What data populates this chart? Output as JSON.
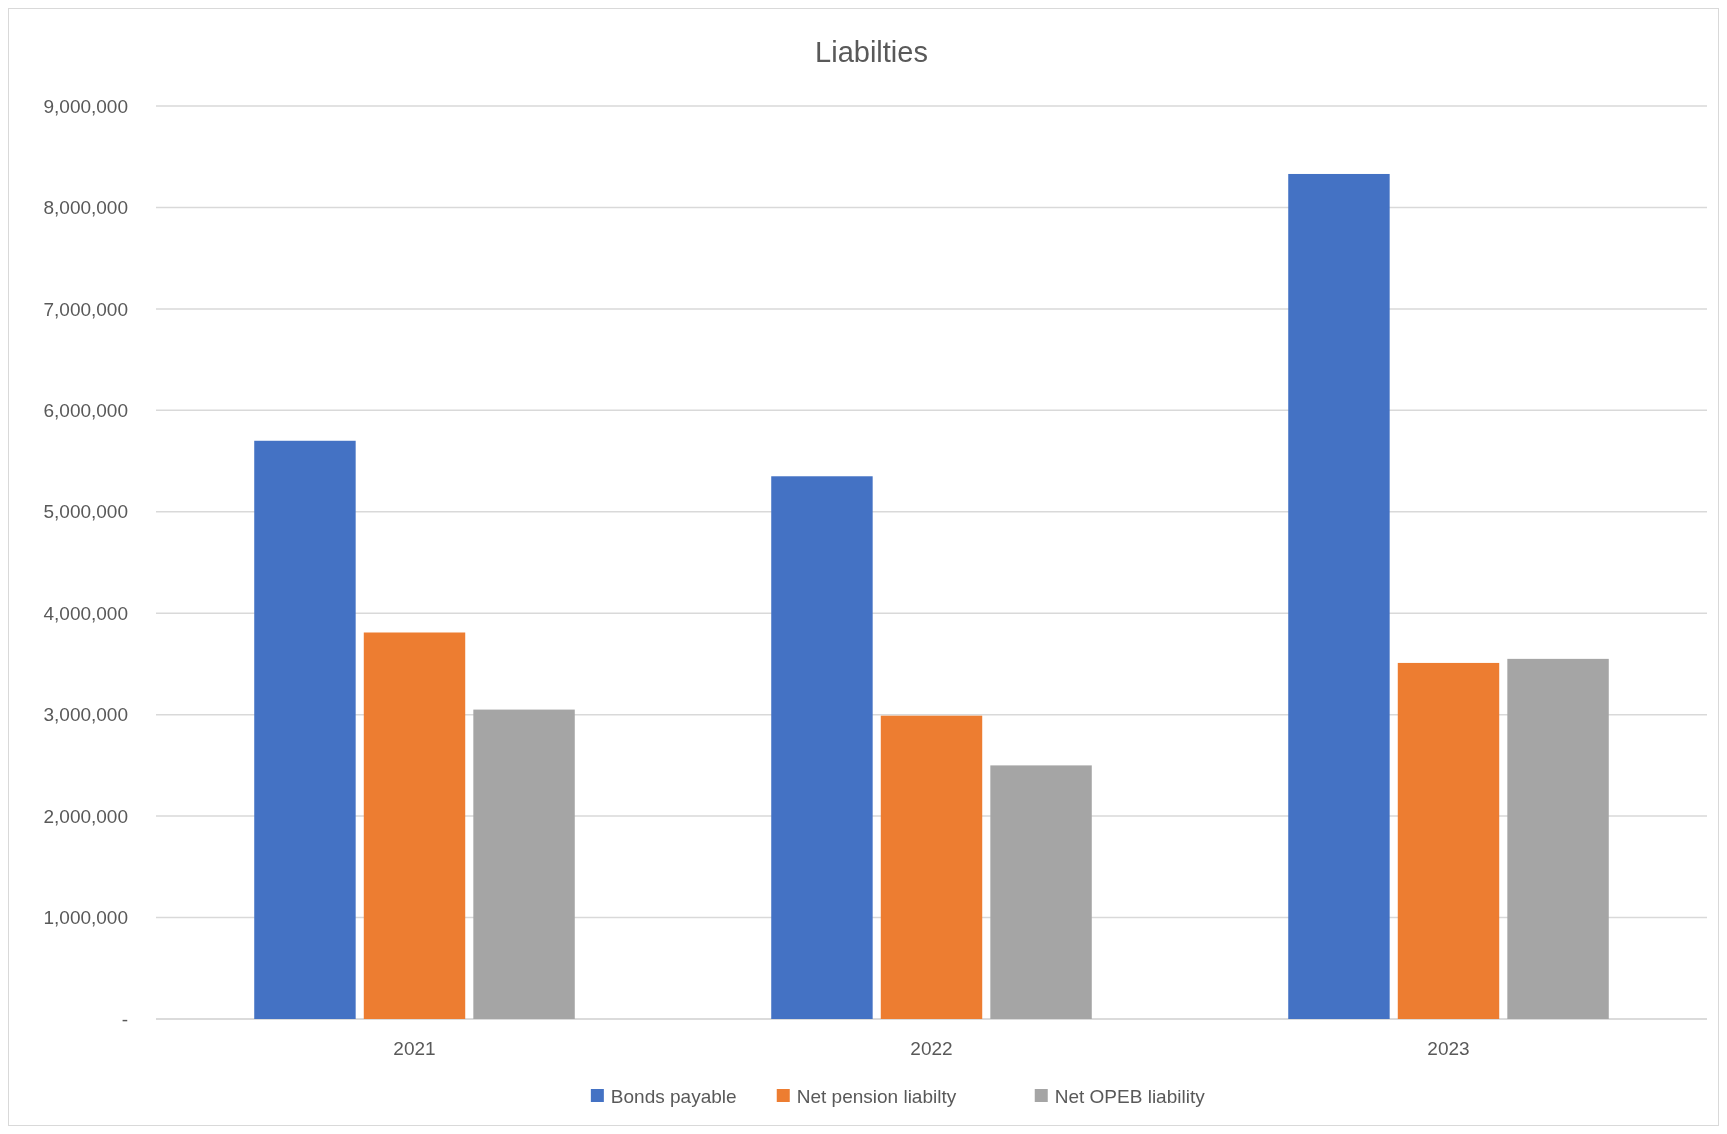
{
  "chart_data": {
    "type": "bar",
    "title": "Liabilties",
    "categories": [
      "2021",
      "2022",
      "2023"
    ],
    "series": [
      {
        "name": "Bonds payable",
        "color": "#4472c4",
        "values": [
          5700000,
          5350000,
          8330000
        ]
      },
      {
        "name": "Net pension liabilty",
        "color": "#ed7d31",
        "values": [
          3810000,
          2990000,
          3510000
        ]
      },
      {
        "name": "Net OPEB liability",
        "color": "#a5a5a5",
        "values": [
          3050000,
          2500000,
          3550000
        ]
      }
    ],
    "ylim": [
      0,
      9000000
    ],
    "yticks": [
      {
        "value": 0,
        "label": "-"
      },
      {
        "value": 1000000,
        "label": "1,000,000"
      },
      {
        "value": 2000000,
        "label": "2,000,000"
      },
      {
        "value": 3000000,
        "label": "3,000,000"
      },
      {
        "value": 4000000,
        "label": "4,000,000"
      },
      {
        "value": 5000000,
        "label": "5,000,000"
      },
      {
        "value": 6000000,
        "label": "6,000,000"
      },
      {
        "value": 7000000,
        "label": "7,000,000"
      },
      {
        "value": 8000000,
        "label": "8,000,000"
      },
      {
        "value": 9000000,
        "label": "9,000,000"
      }
    ],
    "grid": "y",
    "legend": "bottom"
  }
}
